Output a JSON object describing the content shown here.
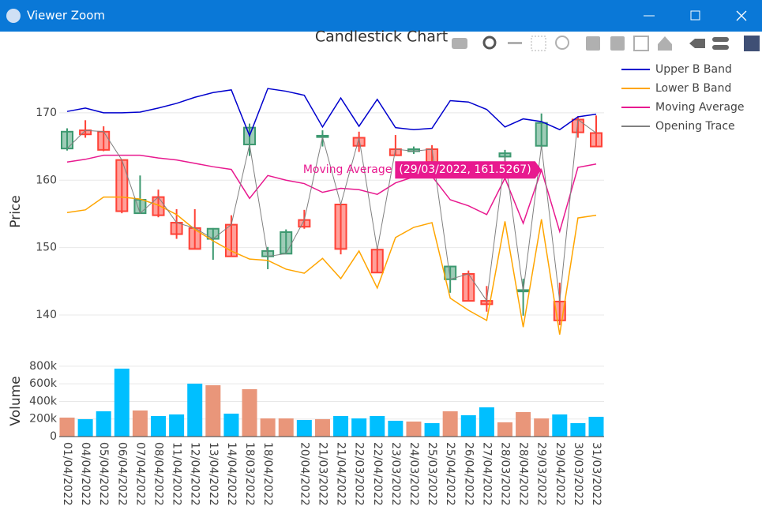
{
  "window_title": "Viewer Zoom",
  "chart_data": [
    {
      "type": "candlestick",
      "title": "Candlestick Chart",
      "y_label": "Price",
      "open": [
        164.7,
        167.4,
        167.2,
        163.0,
        155.1,
        157.5,
        153.7,
        152.9,
        151.3,
        153.4,
        165.3,
        148.7,
        149.1,
        154.1,
        166.4,
        156.4,
        166.3,
        149.7,
        164.6,
        164.3,
        164.6,
        145.3,
        146.1,
        142.1,
        163.5,
        143.5,
        165.1,
        142.0,
        169.0,
        167.0
      ],
      "high": [
        167.7,
        168.9,
        168.0,
        163.0,
        160.7,
        158.6,
        155.7,
        155.7,
        152.9,
        154.8,
        168.4,
        150.1,
        152.7,
        155.6,
        167.4,
        156.4,
        167.2,
        149.9,
        166.7,
        165.0,
        165.2,
        147.3,
        146.6,
        144.3,
        164.5,
        145.4,
        169.9,
        144.8,
        169.5,
        169.6
      ],
      "low": [
        164.4,
        166.3,
        164.3,
        155.1,
        155.1,
        154.5,
        151.3,
        149.8,
        148.2,
        148.7,
        163.6,
        146.8,
        149.1,
        152.8,
        165.0,
        149.0,
        164.2,
        146.3,
        163.7,
        163.9,
        162.7,
        143.3,
        142.1,
        140.5,
        163.2,
        139.9,
        164.8,
        138.5,
        166.3,
        165.0
      ],
      "close": [
        167.2,
        166.8,
        164.5,
        155.4,
        157.1,
        154.8,
        152.0,
        149.8,
        152.8,
        148.7,
        167.8,
        149.5,
        152.3,
        153.1,
        166.6,
        149.8,
        165.1,
        146.3,
        163.7,
        164.6,
        162.7,
        147.2,
        142.1,
        141.6,
        164.0,
        143.7,
        168.5,
        139.2,
        167.1,
        165.0
      ],
      "increasing_color": "#3d9970",
      "decreasing_color": "#ff4136",
      "series": [
        {
          "name": "Upper B Band",
          "color": "#0000cd",
          "values": [
            170.2,
            170.7,
            170.0,
            170.0,
            170.1,
            170.7,
            171.4,
            172.3,
            173.0,
            173.4,
            166.6,
            173.6,
            173.2,
            172.6,
            167.9,
            172.2,
            168.0,
            172.0,
            167.8,
            167.5,
            167.7,
            171.8,
            171.6,
            170.5,
            167.9,
            169.1,
            168.7,
            167.5,
            169.4,
            169.8
          ]
        },
        {
          "name": "Lower B Band",
          "color": "#ffa500",
          "values": [
            155.2,
            155.6,
            157.5,
            157.5,
            157.2,
            156.3,
            154.9,
            152.7,
            151.0,
            149.5,
            148.3,
            148.1,
            146.8,
            146.2,
            148.4,
            145.4,
            149.5,
            144.0,
            151.5,
            153.0,
            153.7,
            142.5,
            140.7,
            139.2,
            153.9,
            138.2,
            154.2,
            137.1,
            154.4,
            154.8
          ]
        },
        {
          "name": "Moving Average",
          "color": "#e8198f",
          "values": [
            162.7,
            163.1,
            163.7,
            163.7,
            163.7,
            163.3,
            163.0,
            162.5,
            162.0,
            161.6,
            157.3,
            160.7,
            160.0,
            159.5,
            158.2,
            158.8,
            158.6,
            157.9,
            159.6,
            160.5,
            160.6,
            157.1,
            156.2,
            154.9,
            160.3,
            153.6,
            161.5267,
            152.4,
            161.9,
            162.4
          ]
        },
        {
          "name": "Opening Trace",
          "color": "#808080",
          "values": [
            164.7,
            167.4,
            167.2,
            163.0,
            155.1,
            157.5,
            153.7,
            152.9,
            151.3,
            153.4,
            165.3,
            148.7,
            149.1,
            154.1,
            166.4,
            156.4,
            166.3,
            149.7,
            164.6,
            164.3,
            164.6,
            145.3,
            146.1,
            142.1,
            163.5,
            143.5,
            165.1,
            142.0,
            169.0,
            167.0
          ]
        }
      ],
      "ylim": [
        135.2,
        177.6
      ],
      "yticks": [
        140,
        150,
        160,
        170
      ],
      "grid": true,
      "legend": "top-right",
      "hover": {
        "series": "Moving Average",
        "index": 26,
        "text": "(29/03/2022, 161.5267)"
      }
    },
    {
      "type": "bar",
      "y_label": "Volume",
      "categories": [
        "01/04/2022",
        "04/04/2022",
        "05/04/2022",
        "06/04/2022",
        "07/04/2022",
        "08/04/2022",
        "11/04/2022",
        "12/04/2022",
        "13/04/2022",
        "14/04/2022",
        "18/03/2022",
        "18/04/2022",
        null,
        "20/04/2022",
        "21/03/2022",
        "21/04/2022",
        "22/03/2022",
        "22/04/2022",
        "23/03/2022",
        "24/03/2022",
        "25/03/2022",
        "25/04/2022",
        "26/04/2022",
        "27/04/2022",
        "28/03/2022",
        "28/04/2022",
        "29/03/2022",
        "29/04/2022",
        "30/03/2022",
        "31/03/2022"
      ],
      "values": [
        216000,
        198000,
        288000,
        773000,
        297000,
        234000,
        252000,
        602000,
        584000,
        261000,
        539000,
        207000,
        207000,
        189000,
        198000,
        234000,
        207000,
        234000,
        180000,
        171000,
        153000,
        288000,
        243000,
        333000,
        162000,
        279000,
        207000,
        252000,
        153000,
        225000
      ],
      "colors": [
        "#e9967a",
        "#00bfff",
        "#00bfff",
        "#00bfff",
        "#e9967a",
        "#00bfff",
        "#00bfff",
        "#00bfff",
        "#e9967a",
        "#00bfff",
        "#e9967a",
        "#e9967a",
        "#e9967a",
        "#00bfff",
        "#e9967a",
        "#00bfff",
        "#00bfff",
        "#00bfff",
        "#00bfff",
        "#e9967a",
        "#00bfff",
        "#e9967a",
        "#00bfff",
        "#00bfff",
        "#e9967a",
        "#e9967a",
        "#e9967a",
        "#00bfff",
        "#00bfff",
        "#00bfff"
      ],
      "ylim": [
        0,
        835000
      ],
      "yticks": [
        {
          "value": 0,
          "label": "0"
        },
        {
          "value": 200000,
          "label": "200k"
        },
        {
          "value": 400000,
          "label": "400k"
        },
        {
          "value": 600000,
          "label": "600k"
        },
        {
          "value": 800000,
          "label": "800k"
        }
      ],
      "grid": true
    }
  ]
}
